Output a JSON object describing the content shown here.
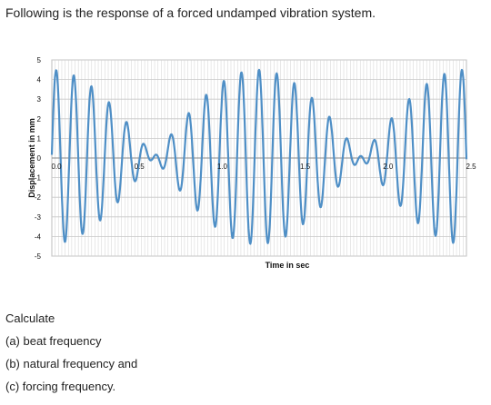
{
  "question": "Following is the response of a forced undamped vibration system.",
  "calculate": {
    "heading": "Calculate",
    "items": [
      "(a) beat frequency",
      "(b) natural frequency and",
      "(c) forcing frequency."
    ]
  },
  "chart_data": {
    "type": "line",
    "title": "",
    "xlabel": "Time in sec",
    "ylabel": "Displacement in mm",
    "xlim": [
      0,
      2.5
    ],
    "ylim": [
      -5,
      5
    ],
    "x_ticks": [
      "0.0",
      "0.5",
      "1.0",
      "1.5",
      "2.0",
      "2.5"
    ],
    "y_ticks": [
      "5",
      "4",
      "3",
      "2",
      "1",
      "0",
      "-1",
      "-2",
      "-3",
      "-4",
      "-5"
    ],
    "grid": true,
    "line_color": "#4f8fc6",
    "series": [
      {
        "name": "",
        "x": [
          0,
          0.5,
          1.0,
          1.5,
          2.0,
          2.5
        ],
        "y": [
          0,
          0.5,
          -2.5,
          0,
          2.3,
          1.9
        ]
      }
    ]
  }
}
